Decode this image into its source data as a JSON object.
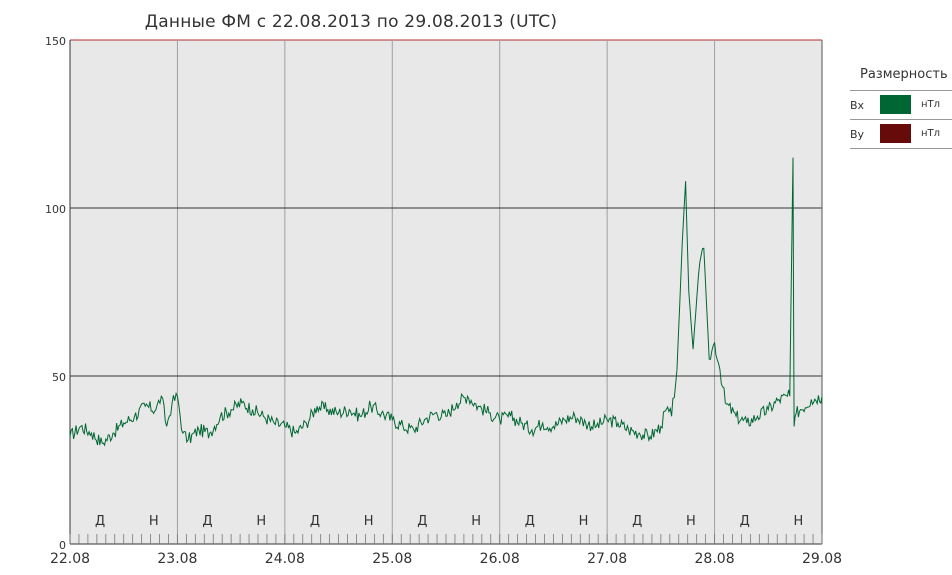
{
  "title": "Данные ФМ с 22.08.2013 по 29.08.2013 (UTC)",
  "legend": {
    "title": "Размерность",
    "items": [
      {
        "label": "Bx",
        "unit": "нТл",
        "color": "#006633"
      },
      {
        "label": "By",
        "unit": "нТл",
        "color": "#660a0a"
      }
    ]
  },
  "colors": {
    "plot_bg": "#e8e8e8",
    "series": "#006633",
    "grid": "#333333",
    "day_divider": "#a0a0a0",
    "top_border": "#b03030"
  },
  "chart_data": {
    "type": "line",
    "title": "Данные ФМ с 22.08.2013 по 29.08.2013 (UTC)",
    "xlabel": "",
    "ylabel": "",
    "x_ticks": [
      "22.08",
      "23.08",
      "24.08",
      "25.08",
      "26.08",
      "27.08",
      "28.08",
      "29.08"
    ],
    "xlim": [
      "22.08",
      "29.08"
    ],
    "y_ticks": [
      0,
      50,
      100,
      150
    ],
    "ylim": [
      0,
      150
    ],
    "grid": true,
    "day_markers": [
      "Д",
      "Н",
      "Д",
      "Н",
      "Д",
      "Н",
      "Д",
      "Н",
      "Д",
      "Н",
      "Д",
      "Н",
      "Д",
      "Н"
    ],
    "series": [
      {
        "name": "Bx",
        "unit": "нТл",
        "x_days_from_22_08": [
          0,
          0.1,
          0.2,
          0.3,
          0.4,
          0.5,
          0.6,
          0.7,
          0.8,
          0.85,
          0.9,
          0.95,
          1.0,
          1.05,
          1.1,
          1.2,
          1.3,
          1.4,
          1.5,
          1.6,
          1.7,
          1.8,
          1.9,
          2.0,
          2.1,
          2.2,
          2.3,
          2.4,
          2.5,
          2.6,
          2.7,
          2.8,
          2.9,
          3.0,
          3.1,
          3.2,
          3.3,
          3.4,
          3.5,
          3.6,
          3.7,
          3.8,
          3.9,
          4.0,
          4.1,
          4.2,
          4.3,
          4.4,
          4.5,
          4.6,
          4.7,
          4.8,
          4.9,
          5.0,
          5.1,
          5.2,
          5.3,
          5.4,
          5.5,
          5.55,
          5.6,
          5.65,
          5.7,
          5.73,
          5.76,
          5.8,
          5.85,
          5.9,
          5.95,
          6.0,
          6.05,
          6.1,
          6.2,
          6.3,
          6.4,
          6.5,
          6.6,
          6.7,
          6.73,
          6.74,
          6.76,
          6.8,
          6.9,
          7.0
        ],
        "values": [
          32,
          35,
          33,
          30,
          33,
          36,
          38,
          41,
          40,
          44,
          35,
          42,
          44,
          33,
          31,
          34,
          33,
          38,
          40,
          42,
          40,
          38,
          36,
          35,
          33,
          36,
          41,
          40,
          39,
          40,
          38,
          41,
          39,
          37,
          35,
          34,
          37,
          39,
          38,
          42,
          44,
          41,
          39,
          37,
          38,
          36,
          34,
          36,
          35,
          37,
          38,
          36,
          35,
          37,
          36,
          34,
          33,
          32,
          35,
          40,
          38,
          52,
          90,
          108,
          75,
          58,
          80,
          88,
          55,
          60,
          52,
          42,
          38,
          36,
          38,
          40,
          43,
          44,
          115,
          35,
          39,
          40,
          43,
          44
        ]
      }
    ]
  }
}
